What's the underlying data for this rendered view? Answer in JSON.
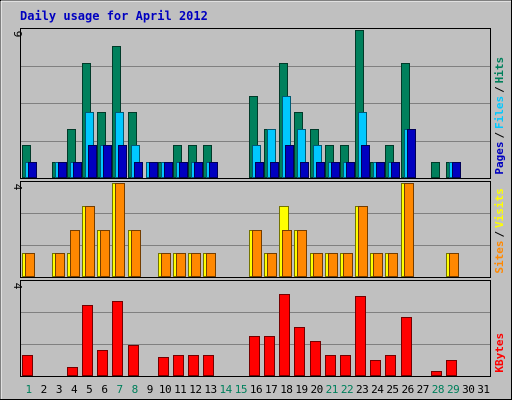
{
  "chart_data": {
    "type": "bar",
    "title": "Daily usage for April 2012",
    "categories": [
      "1",
      "2",
      "3",
      "4",
      "5",
      "6",
      "7",
      "8",
      "9",
      "10",
      "11",
      "12",
      "13",
      "14",
      "15",
      "16",
      "17",
      "18",
      "19",
      "20",
      "21",
      "22",
      "23",
      "24",
      "25",
      "26",
      "27",
      "28",
      "29",
      "30",
      "31"
    ],
    "weekend_days": [
      "1",
      "7",
      "8",
      "14",
      "15",
      "21",
      "22",
      "28",
      "29"
    ],
    "panels": [
      {
        "id": "pages-files-hits",
        "ymax_label": "9",
        "ylim": [
          0,
          9
        ],
        "legend": [
          "Pages",
          "/",
          "Files",
          "/",
          "Hits"
        ],
        "series": [
          {
            "name": "Hits",
            "color": "#00805c",
            "values": [
              2,
              0,
              1,
              3,
              7,
              4,
              8,
              4,
              0,
              1,
              2,
              2,
              2,
              0,
              0,
              5,
              3,
              7,
              4,
              3,
              2,
              2,
              9,
              1,
              2,
              7,
              0,
              1,
              1,
              0,
              0
            ]
          },
          {
            "name": "Files",
            "color": "#00c8ff",
            "values": [
              1,
              0,
              1,
              1,
              4,
              2,
              4,
              2,
              1,
              1,
              1,
              1,
              1,
              0,
              0,
              2,
              3,
              5,
              3,
              2,
              1,
              1,
              4,
              1,
              1,
              3,
              0,
              0,
              1,
              0,
              0
            ]
          },
          {
            "name": "Pages",
            "color": "#0000c0",
            "values": [
              1,
              0,
              1,
              1,
              2,
              2,
              2,
              1,
              1,
              1,
              1,
              1,
              1,
              0,
              0,
              1,
              1,
              2,
              1,
              1,
              1,
              1,
              2,
              1,
              1,
              3,
              0,
              0,
              1,
              0,
              0
            ]
          }
        ]
      },
      {
        "id": "sites-visits",
        "ymax_label": "4",
        "ylim": [
          0,
          4
        ],
        "legend": [
          "Sites",
          "/",
          "Visits"
        ],
        "series": [
          {
            "name": "Visits",
            "color": "#ffff00",
            "values": [
              1,
              0,
              1,
              1,
              3,
              2,
              4,
              2,
              0,
              1,
              1,
              1,
              1,
              0,
              0,
              2,
              1,
              3,
              2,
              1,
              1,
              1,
              3,
              1,
              1,
              4,
              0,
              0,
              1,
              0,
              0
            ]
          },
          {
            "name": "Sites",
            "color": "#ff8800",
            "values": [
              1,
              0,
              1,
              2,
              3,
              2,
              4,
              2,
              0,
              1,
              1,
              1,
              1,
              0,
              0,
              2,
              1,
              2,
              2,
              1,
              1,
              1,
              3,
              1,
              1,
              4,
              0,
              0,
              1,
              0,
              0
            ]
          }
        ]
      },
      {
        "id": "kbytes",
        "ymax_label": "4",
        "ylim": [
          0,
          4
        ],
        "legend": [
          "KBytes"
        ],
        "series": [
          {
            "name": "KBytes",
            "color": "#ff0000",
            "values": [
              0.9,
              0,
              0,
              0.4,
              3.0,
              1.1,
              3.2,
              1.3,
              0,
              0.8,
              0.9,
              0.9,
              0.9,
              0,
              0,
              1.7,
              1.7,
              3.5,
              2.1,
              1.5,
              0.9,
              0.9,
              3.4,
              0.7,
              0.9,
              2.5,
              0,
              0.2,
              0.7,
              0,
              0
            ]
          }
        ]
      }
    ],
    "legend_colors": {
      "Pages": "#0000c0",
      "Files": "#00c8ff",
      "Hits": "#00805c",
      "Sites": "#ff8800",
      "Visits": "#ffff00",
      "KBytes": "#ff0000",
      "separator": "#000000"
    },
    "label_colors": {
      "title": "#0000c0",
      "weekday": "#000000",
      "weekend": "#00805c"
    },
    "background": "#c0c0c0",
    "grid": true
  }
}
